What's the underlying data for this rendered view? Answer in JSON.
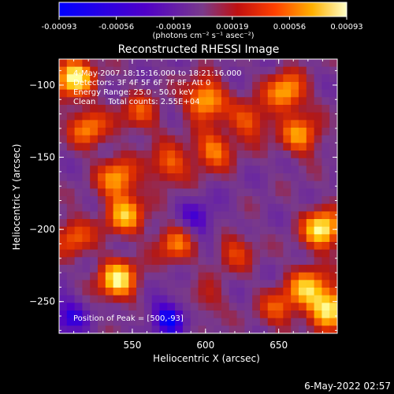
{
  "chart_data": {
    "type": "heatmap",
    "title": "Reconstructed RHESSI Image",
    "xlabel": "Heliocentric X (arcsec)",
    "ylabel": "Heliocentric Y (arcsec)",
    "xlim": [
      500,
      690
    ],
    "ylim": [
      -272,
      -82
    ],
    "x_ticks": [
      "550",
      "600",
      "650"
    ],
    "y_ticks": [
      "-100",
      "-150",
      "-200",
      "-250"
    ],
    "annotations": [
      "4-May-2007 18:15:16.000 to 18:21:16.000",
      "Detectors: 3F 4F 5F 6F 7F 8F, Att 0",
      "Energy Range: 25.0 - 50.0 keV",
      "Clean     Total counts: 2.55E+04"
    ],
    "peak_label": "Position of Peak = [500,-93]",
    "peak_position": [
      500,
      -93
    ],
    "colorbar": {
      "ticks": [
        "-0.00093",
        "-0.00056",
        "-0.00019",
        "0.00019",
        "0.00056",
        "0.00093"
      ],
      "unit_label": "(photons cm⁻² s⁻¹ asec⁻²)",
      "range": [
        -0.00093,
        0.00093
      ]
    },
    "colormap": [
      "#0000ff",
      "#5000c8",
      "#6a28a0",
      "#7a3a8a",
      "#b01818",
      "#e03000",
      "#ff7a00",
      "#ffc000",
      "#ffffa0"
    ],
    "bright_sources": [
      {
        "x": 520,
        "y": -130,
        "level": 0.72
      },
      {
        "x": 510,
        "y": -95,
        "level": 0.95
      },
      {
        "x": 555,
        "y": -120,
        "level": 0.62
      },
      {
        "x": 540,
        "y": -165,
        "level": 0.78
      },
      {
        "x": 545,
        "y": -190,
        "level": 0.8
      },
      {
        "x": 510,
        "y": -205,
        "level": 0.66
      },
      {
        "x": 540,
        "y": -235,
        "level": 0.93
      },
      {
        "x": 575,
        "y": -155,
        "level": 0.68
      },
      {
        "x": 600,
        "y": -110,
        "level": 0.86
      },
      {
        "x": 605,
        "y": -145,
        "level": 0.72
      },
      {
        "x": 630,
        "y": -125,
        "level": 0.66
      },
      {
        "x": 655,
        "y": -105,
        "level": 0.82
      },
      {
        "x": 665,
        "y": -135,
        "level": 0.75
      },
      {
        "x": 680,
        "y": -200,
        "level": 0.96
      },
      {
        "x": 670,
        "y": -240,
        "level": 0.8
      },
      {
        "x": 685,
        "y": -255,
        "level": 0.95
      },
      {
        "x": 650,
        "y": -255,
        "level": 0.62
      },
      {
        "x": 620,
        "y": -215,
        "level": 0.58
      },
      {
        "x": 600,
        "y": -250,
        "level": 0.5
      },
      {
        "x": 580,
        "y": -210,
        "level": 0.7
      }
    ],
    "dim_regions": [
      {
        "x": 575,
        "y": -260,
        "level": 0.05
      },
      {
        "x": 595,
        "y": -195,
        "level": 0.12
      },
      {
        "x": 505,
        "y": -260,
        "level": 0.1
      }
    ]
  },
  "footer": {
    "date": "6-May-2022 02:57"
  }
}
